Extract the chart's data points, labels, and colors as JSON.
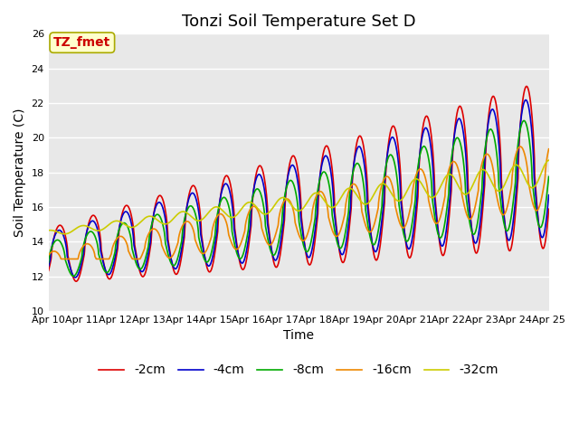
{
  "title": "Tonzi Soil Temperature Set D",
  "xlabel": "Time",
  "ylabel": "Soil Temperature (C)",
  "ylim": [
    10,
    26
  ],
  "xlim": [
    0,
    15
  ],
  "annotation": "TZ_fmet",
  "annotation_color": "#cc0000",
  "annotation_bg": "#ffffcc",
  "annotation_edge": "#aaaa00",
  "plot_bg": "#e8e8e8",
  "fig_bg": "#ffffff",
  "legend_labels": [
    "-2cm",
    "-4cm",
    "-8cm",
    "-16cm",
    "-32cm"
  ],
  "legend_colors": [
    "#dd0000",
    "#0000cc",
    "#00aa00",
    "#ee8800",
    "#cccc00"
  ],
  "x_tick_labels": [
    "Apr 10",
    "Apr 11",
    "Apr 12",
    "Apr 13",
    "Apr 14",
    "Apr 15",
    "Apr 16",
    "Apr 17",
    "Apr 18",
    "Apr 19",
    "Apr 20",
    "Apr 21",
    "Apr 22",
    "Apr 23",
    "Apr 24",
    "Apr 25"
  ],
  "y_ticks": [
    10,
    12,
    14,
    16,
    18,
    20,
    22,
    24,
    26
  ],
  "title_fontsize": 13,
  "label_fontsize": 10,
  "tick_fontsize": 8,
  "legend_fontsize": 10,
  "line_width": 1.2,
  "n_points": 1500
}
